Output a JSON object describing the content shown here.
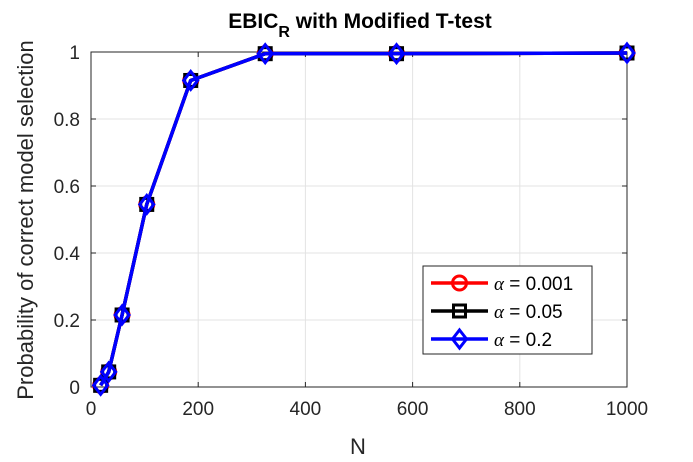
{
  "chart_data": {
    "type": "line",
    "title_main": "EBIC",
    "title_sub": "R",
    "title_rest": " with Modified T-test",
    "xlabel": "N",
    "ylabel": "Probability of correct model selection",
    "xlim": [
      0,
      1000
    ],
    "ylim": [
      0,
      1
    ],
    "xticks": [
      "0",
      "200",
      "400",
      "600",
      "800",
      "1000"
    ],
    "yticks": [
      "0",
      "0.2",
      "0.4",
      "0.6",
      "0.8",
      "1"
    ],
    "grid": true,
    "legend_position": "bottom-right",
    "x": [
      18,
      33,
      58,
      104,
      186,
      325,
      570,
      1000
    ],
    "series": [
      {
        "name": "α = 0.001",
        "legend_symbol": "α",
        "legend_rest": " = 0.001",
        "marker": "circle",
        "color": "#ff0000",
        "values": [
          0.005,
          0.045,
          0.215,
          0.545,
          0.915,
          0.995,
          0.995,
          0.997
        ]
      },
      {
        "name": "α = 0.05",
        "legend_symbol": "α",
        "legend_rest": " = 0.05",
        "marker": "square",
        "color": "#000000",
        "values": [
          0.005,
          0.045,
          0.215,
          0.545,
          0.915,
          0.995,
          0.995,
          0.997
        ]
      },
      {
        "name": "α = 0.2",
        "legend_symbol": "α",
        "legend_rest": " = 0.2",
        "marker": "diamond",
        "color": "#0000ff",
        "values": [
          0.005,
          0.045,
          0.215,
          0.545,
          0.915,
          0.995,
          0.995,
          0.997
        ]
      }
    ]
  }
}
